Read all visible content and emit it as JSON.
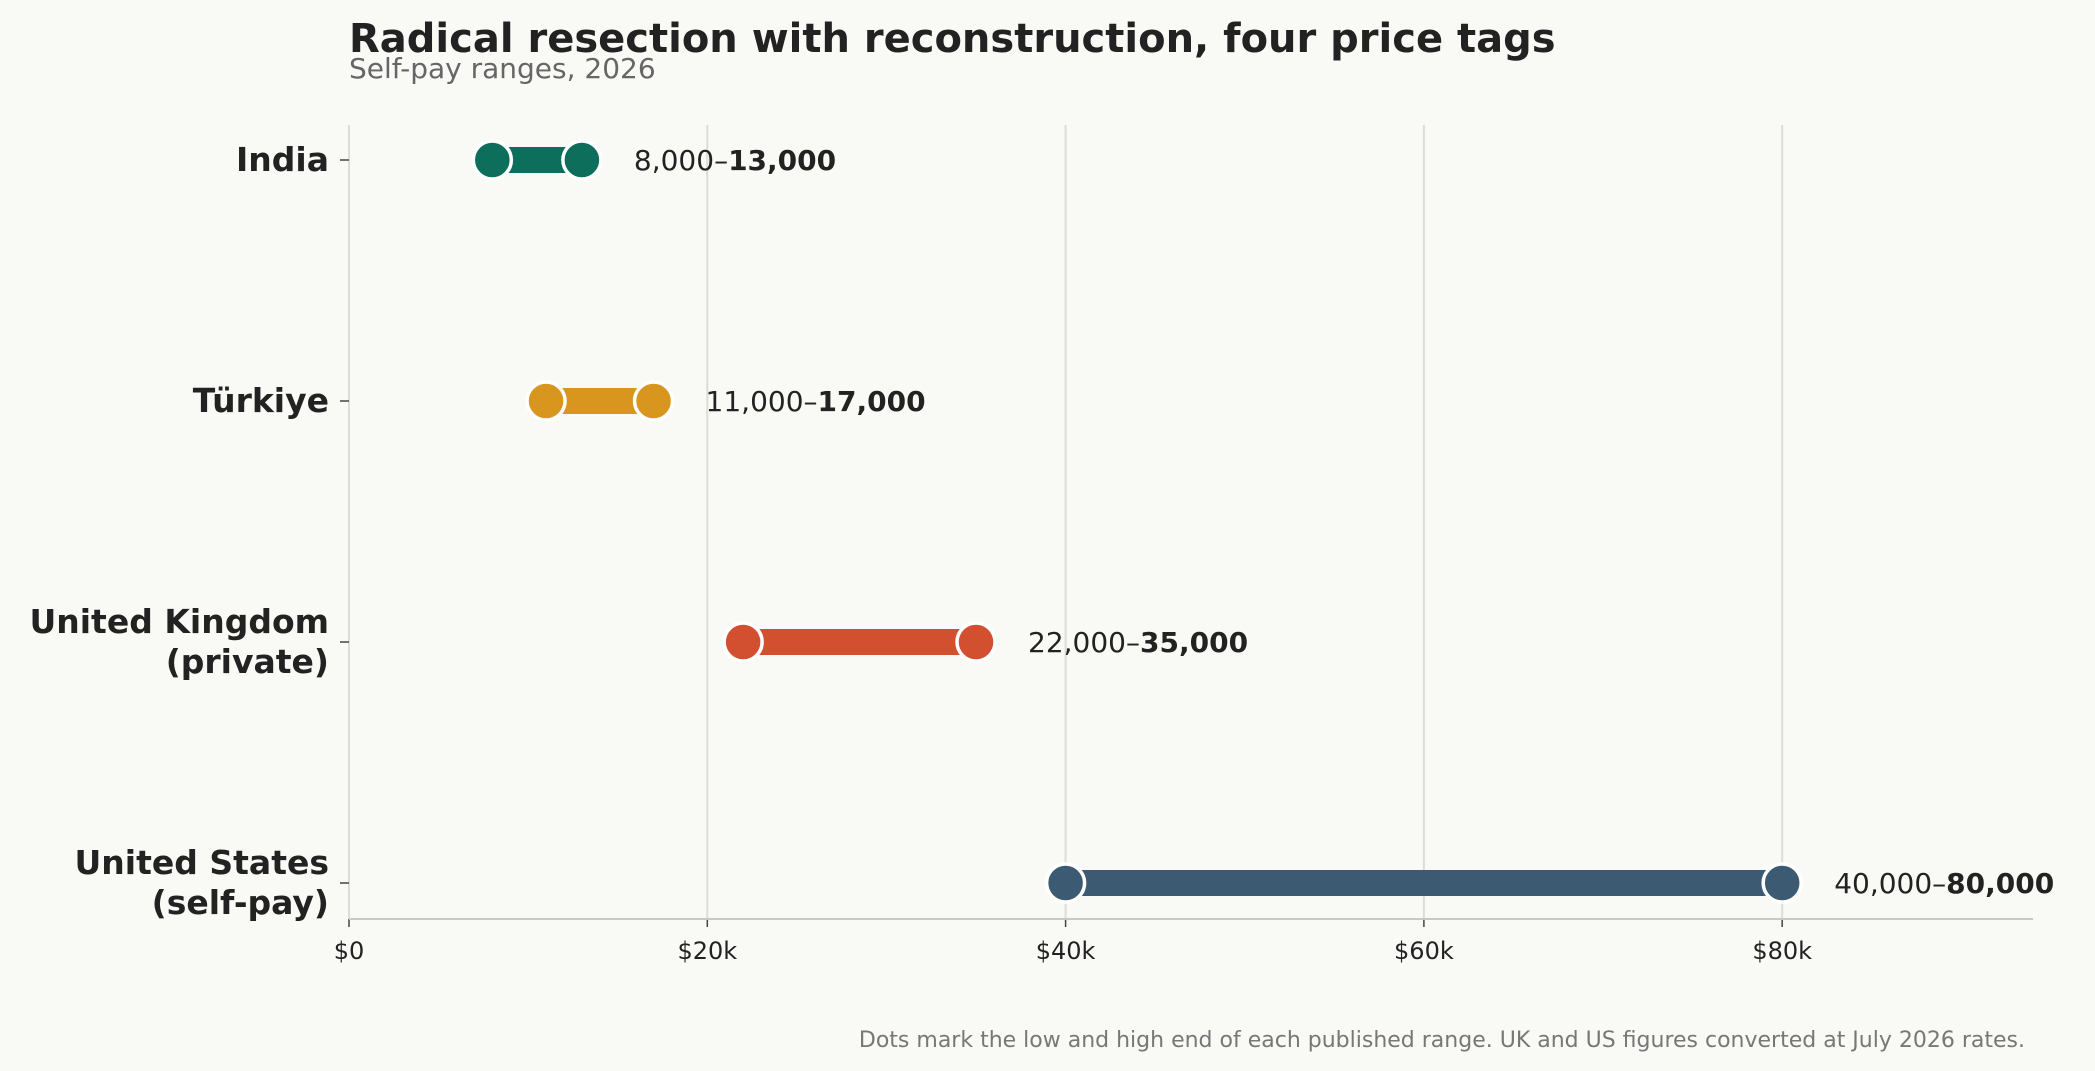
{
  "chart_data": {
    "type": "dumbbell",
    "title": "Radical resection with reconstruction, four price tags",
    "subtitle": "Self-pay ranges, 2026",
    "footnote": "Dots mark the low and high end of each published range. UK and US figures converted at July 2026 rates.",
    "xlim": [
      0,
      94000
    ],
    "x_ticks": [
      {
        "value": 0,
        "label": "$0"
      },
      {
        "value": 20000,
        "label": "$20k"
      },
      {
        "value": 40000,
        "label": "$40k"
      },
      {
        "value": 60000,
        "label": "$60k"
      },
      {
        "value": 80000,
        "label": "$80k"
      }
    ],
    "grid": "vertical",
    "series": [
      {
        "category_lines": [
          "India"
        ],
        "low": 8000,
        "high": 13000,
        "low_label": "8,000",
        "high_label": "13,000",
        "color": "#0e6e5c"
      },
      {
        "category_lines": [
          "Türkiye"
        ],
        "low": 11000,
        "high": 17000,
        "low_label": "11,000",
        "high_label": "17,000",
        "color": "#d9961e"
      },
      {
        "category_lines": [
          "United Kingdom",
          "(private)"
        ],
        "low": 22000,
        "high": 35000,
        "low_label": "22,000",
        "high_label": "35,000",
        "color": "#d2502f"
      },
      {
        "category_lines": [
          "United States",
          "(self-pay)"
        ],
        "low": 40000,
        "high": 80000,
        "low_label": "40,000",
        "high_label": "80,000",
        "color": "#3d5a73"
      }
    ],
    "range_separator": "–"
  }
}
